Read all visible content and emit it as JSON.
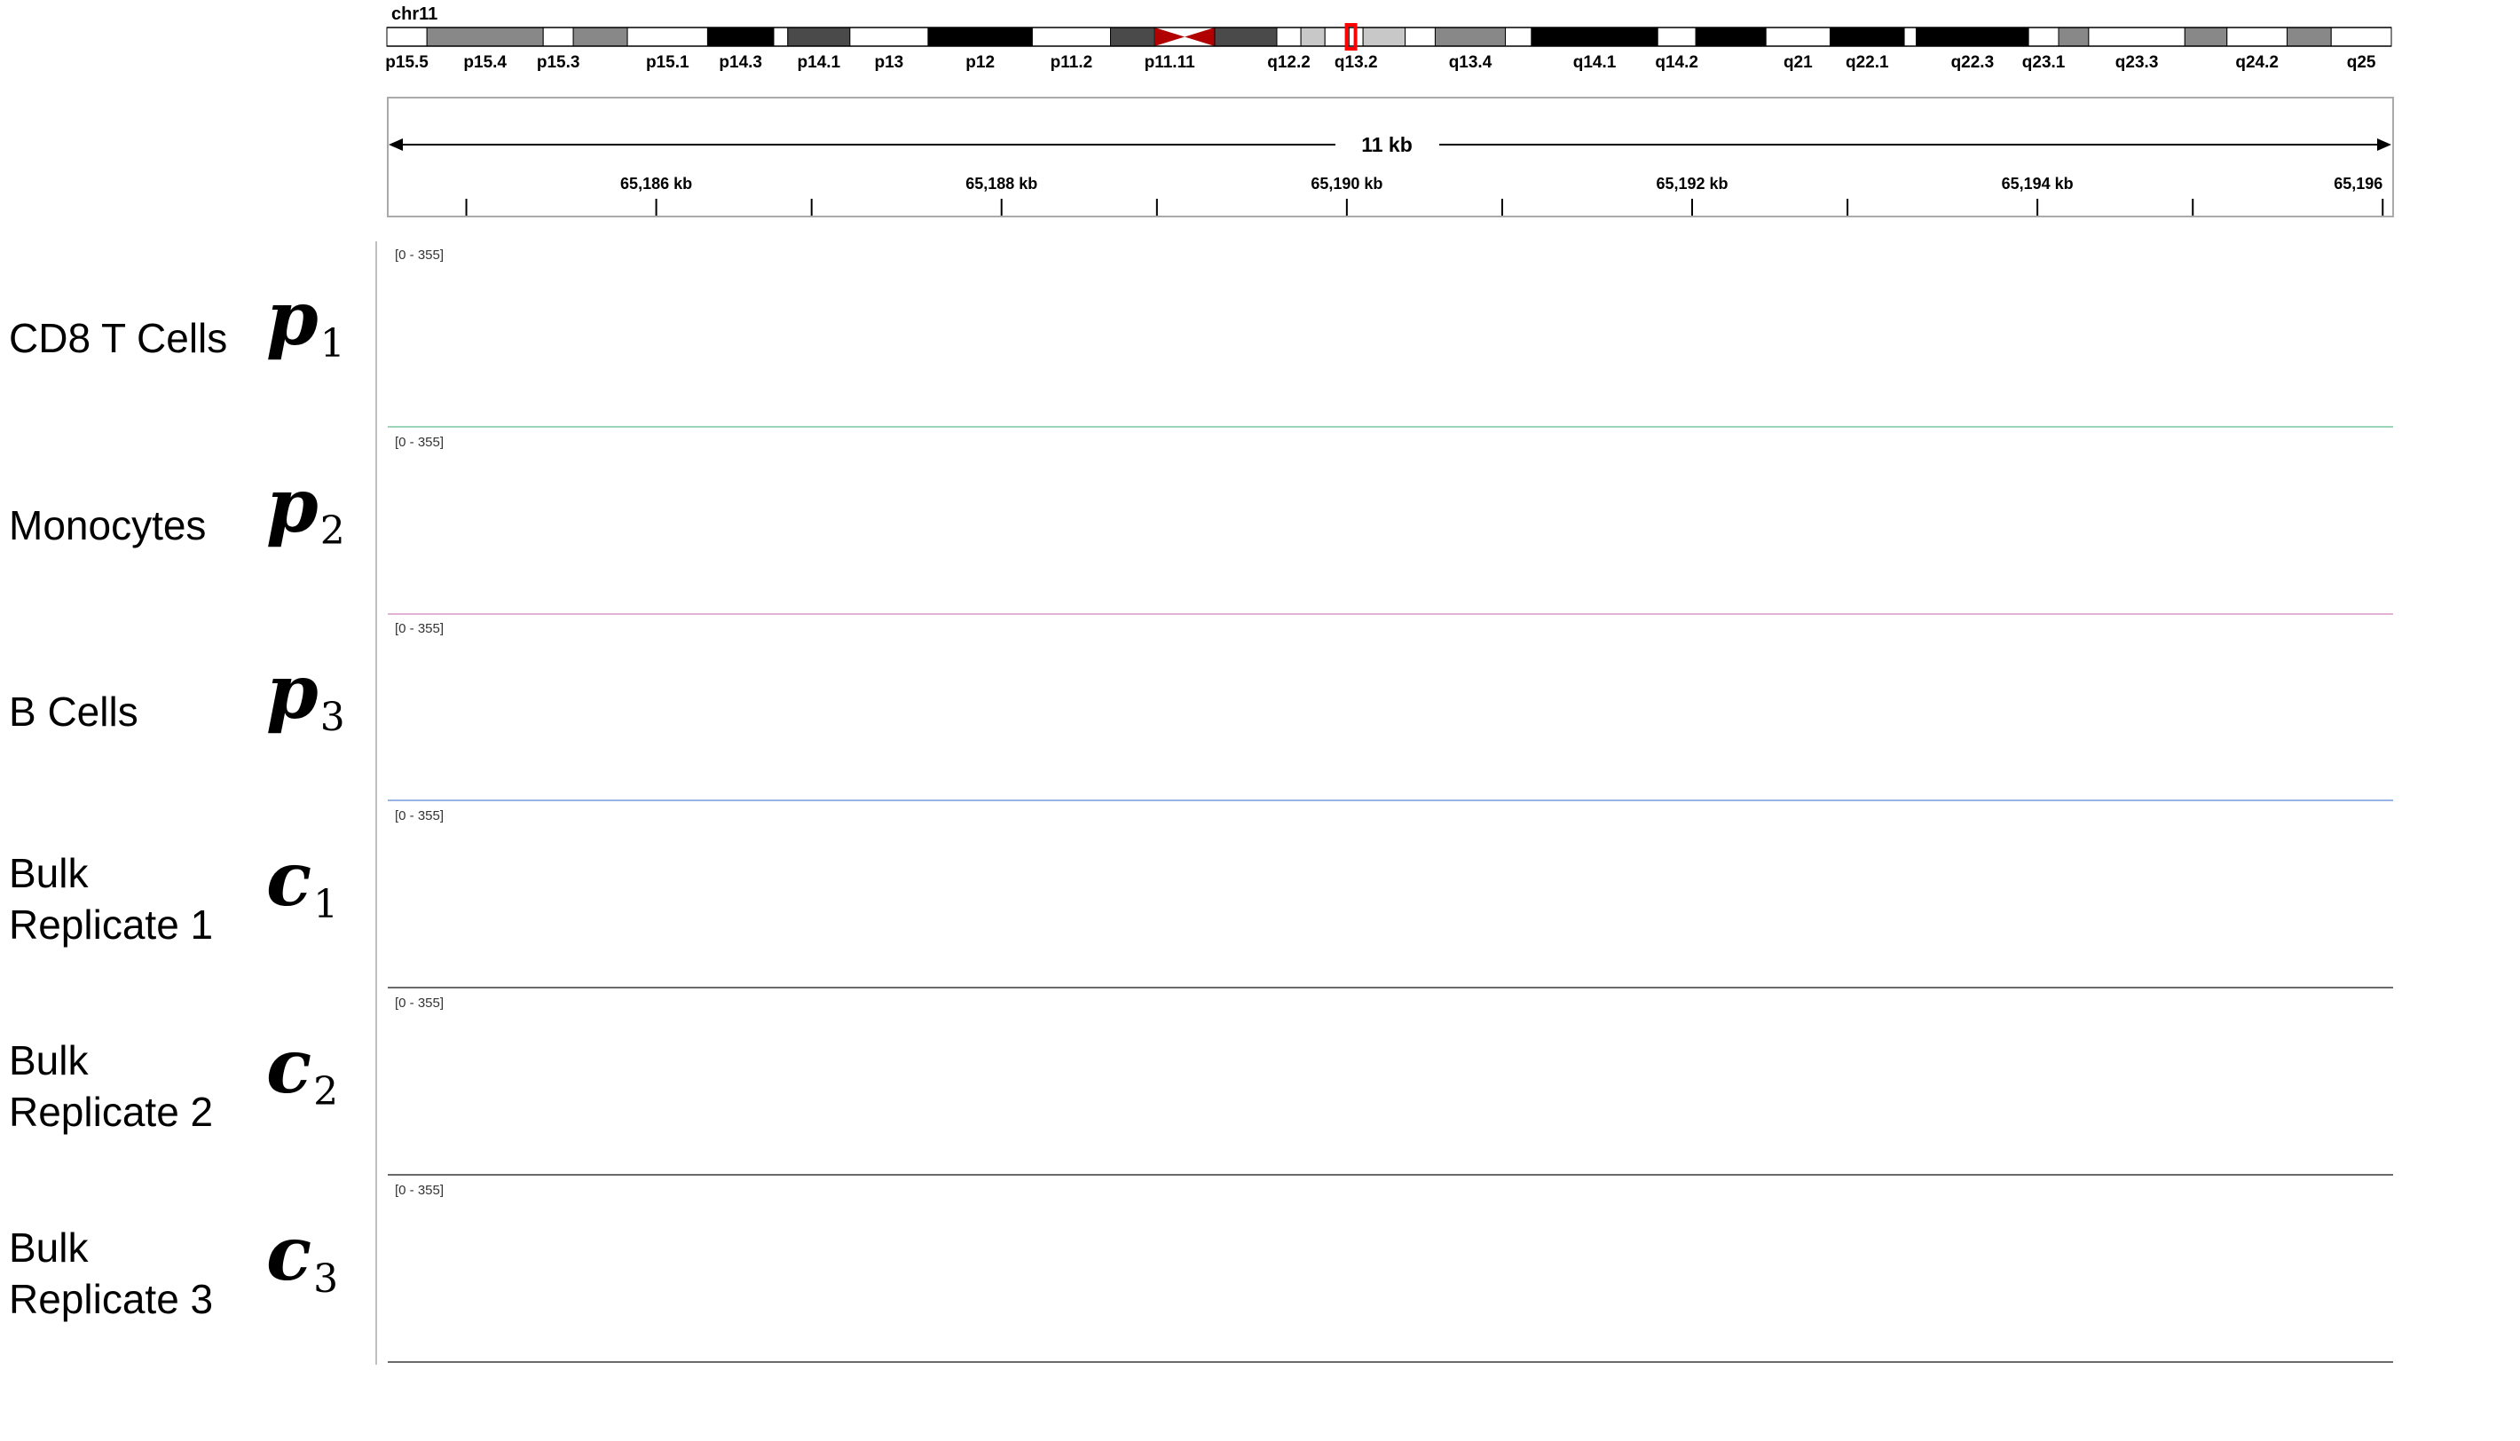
{
  "chromosome": {
    "name": "chr11",
    "bands": [
      {
        "label": "p15.5",
        "start": 0.0,
        "end": 0.02,
        "stain": "gneg"
      },
      {
        "label": "p15.4",
        "start": 0.02,
        "end": 0.078,
        "stain": "gpos50"
      },
      {
        "label": "p15.3",
        "start": 0.078,
        "end": 0.093,
        "stain": "gneg"
      },
      {
        "label": "",
        "start": 0.093,
        "end": 0.12,
        "stain": "gpos50"
      },
      {
        "label": "p15.1",
        "start": 0.12,
        "end": 0.16,
        "stain": "gneg"
      },
      {
        "label": "p14.3",
        "start": 0.16,
        "end": 0.193,
        "stain": "gpos100"
      },
      {
        "label": "",
        "start": 0.193,
        "end": 0.2,
        "stain": "gneg"
      },
      {
        "label": "p14.1",
        "start": 0.2,
        "end": 0.231,
        "stain": "gpos75"
      },
      {
        "label": "p13",
        "start": 0.231,
        "end": 0.27,
        "stain": "gneg"
      },
      {
        "label": "p12",
        "start": 0.27,
        "end": 0.322,
        "stain": "gpos100"
      },
      {
        "label": "p11.2",
        "start": 0.322,
        "end": 0.361,
        "stain": "gneg"
      },
      {
        "label": "",
        "start": 0.361,
        "end": 0.383,
        "stain": "gpos75"
      },
      {
        "label": "p11.11",
        "start": 0.383,
        "end": 0.398,
        "stain": "acen"
      },
      {
        "label": "",
        "start": 0.398,
        "end": 0.413,
        "stain": "acen"
      },
      {
        "label": "",
        "start": 0.413,
        "end": 0.444,
        "stain": "gpos75"
      },
      {
        "label": "q12.2",
        "start": 0.444,
        "end": 0.456,
        "stain": "gneg"
      },
      {
        "label": "",
        "start": 0.456,
        "end": 0.468,
        "stain": "gpos25"
      },
      {
        "label": "",
        "start": 0.468,
        "end": 0.48,
        "stain": "gneg"
      },
      {
        "label": "q13.2",
        "start": 0.48,
        "end": 0.487,
        "stain": "gneg"
      },
      {
        "label": "",
        "start": 0.487,
        "end": 0.508,
        "stain": "gpos25"
      },
      {
        "label": "",
        "start": 0.508,
        "end": 0.523,
        "stain": "gneg"
      },
      {
        "label": "q13.4",
        "start": 0.523,
        "end": 0.558,
        "stain": "gpos50"
      },
      {
        "label": "",
        "start": 0.558,
        "end": 0.571,
        "stain": "gneg"
      },
      {
        "label": "q14.1",
        "start": 0.571,
        "end": 0.634,
        "stain": "gpos100"
      },
      {
        "label": "q14.2",
        "start": 0.634,
        "end": 0.653,
        "stain": "gneg"
      },
      {
        "label": "",
        "start": 0.653,
        "end": 0.688,
        "stain": "gpos100"
      },
      {
        "label": "q21",
        "start": 0.688,
        "end": 0.72,
        "stain": "gneg"
      },
      {
        "label": "q22.1",
        "start": 0.72,
        "end": 0.757,
        "stain": "gpos100"
      },
      {
        "label": "",
        "start": 0.757,
        "end": 0.763,
        "stain": "gneg"
      },
      {
        "label": "q22.3",
        "start": 0.763,
        "end": 0.819,
        "stain": "gpos100"
      },
      {
        "label": "q23.1",
        "start": 0.819,
        "end": 0.834,
        "stain": "gneg"
      },
      {
        "label": "",
        "start": 0.834,
        "end": 0.849,
        "stain": "gpos50"
      },
      {
        "label": "q23.3",
        "start": 0.849,
        "end": 0.897,
        "stain": "gneg"
      },
      {
        "label": "",
        "start": 0.897,
        "end": 0.918,
        "stain": "gpos50"
      },
      {
        "label": "q24.2",
        "start": 0.918,
        "end": 0.948,
        "stain": "gneg"
      },
      {
        "label": "",
        "start": 0.948,
        "end": 0.97,
        "stain": "gpos50"
      },
      {
        "label": "q25",
        "start": 0.97,
        "end": 1.0,
        "stain": "gneg"
      }
    ],
    "band_labels": [
      "p15.4",
      "p15.3",
      "p15.1",
      "p14.3",
      "p14.1",
      "p13",
      "p12",
      "p11.2",
      "p11.11",
      "q12.2",
      "q13.2",
      "q13.4",
      "q14.1",
      "q14.2",
      "q21",
      "q22.1",
      "q22.3",
      "q23.1",
      "q23.3",
      "q24.2",
      "q25"
    ],
    "highlight_fraction": 0.481,
    "highlight_color": "#ff0000",
    "centromere_color": "#b00000"
  },
  "ruler": {
    "span_label": "11 kb",
    "range_kb": [
      65184.45,
      65196.05
    ],
    "ticks_kb": [
      65186,
      65188,
      65190,
      65192,
      65194,
      65196
    ],
    "tick_labels": [
      "65,186 kb",
      "65,188 kb",
      "65,190 kb",
      "65,192 kb",
      "65,194 kb",
      "65,196"
    ],
    "minor_ticks_kb": [
      65184.9,
      65186.9,
      65188.9,
      65190.9,
      65192.9,
      65194.9
    ]
  },
  "tracks": [
    {
      "label": "CD8 T Cells",
      "label_lines": [
        "CD8 T Cells"
      ],
      "symbol": "p",
      "subscript": "1",
      "color": "#5fd6a0",
      "range_label": "[0 - 355]"
    },
    {
      "label": "Monocytes",
      "label_lines": [
        "Monocytes"
      ],
      "symbol": "p",
      "subscript": "2",
      "color": "#ee8fd3",
      "range_label": "[0 - 355]"
    },
    {
      "label": "B Cells",
      "label_lines": [
        "B Cells"
      ],
      "symbol": "p",
      "subscript": "3",
      "color": "#5b8ff5",
      "range_label": "[0 - 355]"
    },
    {
      "label": "Bulk Replicate 1",
      "label_lines": [
        "Bulk",
        "Replicate 1"
      ],
      "symbol": "c",
      "subscript": "1",
      "color": "#000000",
      "range_label": "[0 - 355]"
    },
    {
      "label": "Bulk Replicate 2",
      "label_lines": [
        "Bulk",
        "Replicate 2"
      ],
      "symbol": "c",
      "subscript": "2",
      "color": "#000000",
      "range_label": "[0 - 355]"
    },
    {
      "label": "Bulk Replicate 3",
      "label_lines": [
        "Bulk",
        "Replicate 3"
      ],
      "symbol": "c",
      "subscript": "3",
      "color": "#000000",
      "range_label": "[0 - 355]"
    }
  ],
  "chart_data": {
    "type": "area",
    "x": [
      65184.45,
      65184.9,
      65185.2,
      65185.4,
      65185.5,
      65185.6,
      65185.7,
      65185.8,
      65185.9,
      65186.0,
      65186.1,
      65186.2,
      65186.3,
      65186.4,
      65186.5,
      65186.6,
      65186.7,
      65186.8,
      65186.9,
      65187.0,
      65187.2,
      65187.4,
      65187.5,
      65187.6,
      65187.7,
      65187.8,
      65187.9,
      65188.0,
      65188.2,
      65188.4,
      65188.6,
      65188.8,
      65188.9,
      65189.0,
      65189.1,
      65189.2,
      65189.3,
      65189.4,
      65189.6,
      65189.7,
      65189.8,
      65189.9,
      65190.0,
      65190.1,
      65190.2,
      65190.3,
      65190.4,
      65190.6,
      65190.8,
      65191.0,
      65191.2,
      65191.4,
      65191.6,
      65191.8,
      65192.0,
      65192.2,
      65192.4,
      65192.6,
      65192.8,
      65192.9,
      65193.0,
      65193.1,
      65193.2,
      65193.3,
      65193.5,
      65193.7,
      65193.8,
      65193.9,
      65194.0,
      65194.1,
      65194.3,
      65194.5,
      65194.7,
      65194.9,
      65195.1,
      65195.3,
      65195.5,
      65195.7,
      65195.9,
      65196.05
    ],
    "series": [
      {
        "name": "CD8 T Cells",
        "values": [
          0,
          0,
          0,
          0,
          0,
          0,
          0,
          0,
          0,
          0,
          0,
          0,
          0,
          0,
          0,
          0,
          0,
          0,
          0,
          0,
          0,
          0,
          0,
          0,
          0,
          0,
          0,
          0,
          0,
          0,
          0,
          0,
          0,
          0,
          0,
          0,
          0,
          0,
          0,
          0,
          0,
          0,
          0,
          0,
          0,
          0,
          0,
          0,
          0,
          0,
          0,
          0,
          0,
          0,
          0,
          0,
          0,
          0,
          0,
          0,
          0,
          0,
          0,
          0,
          0,
          0,
          0,
          0,
          0,
          0,
          0,
          0,
          0,
          0,
          0,
          0,
          0,
          0,
          0,
          0
        ]
      },
      {
        "name": "Monocytes",
        "values": [
          0,
          0,
          0,
          0,
          0,
          0,
          0,
          0,
          0,
          0,
          0,
          0,
          0,
          0,
          0,
          0,
          0,
          0,
          0,
          0,
          0,
          0,
          0,
          0,
          0,
          0,
          0,
          0,
          0,
          0,
          0,
          0,
          0,
          0,
          0,
          0,
          0,
          0,
          0,
          0,
          0,
          0,
          0,
          0,
          0,
          0,
          0,
          0,
          0,
          0,
          0,
          0,
          0,
          0,
          0,
          0,
          0,
          0,
          0,
          0,
          0,
          0,
          0,
          0,
          0,
          0,
          0,
          0,
          0,
          0,
          0,
          0,
          0,
          0,
          0,
          0,
          0,
          0,
          0,
          0
        ]
      },
      {
        "name": "B Cells",
        "values": [
          0,
          0,
          0,
          0,
          0,
          0,
          0,
          0,
          0,
          0,
          0,
          0,
          0,
          0,
          0,
          0,
          0,
          0,
          0,
          0,
          0,
          0,
          0,
          0,
          0,
          0,
          0,
          0,
          0,
          0,
          0,
          0,
          0,
          0,
          0,
          0,
          0,
          0,
          0,
          0,
          0,
          0,
          0,
          0,
          0,
          0,
          0,
          0,
          0,
          0,
          0,
          0,
          0,
          0,
          0,
          0,
          0,
          0,
          0,
          0,
          0,
          0,
          0,
          0,
          0,
          0,
          0,
          0,
          0,
          0,
          0,
          0,
          0,
          0,
          0,
          0,
          0,
          0,
          0,
          0
        ]
      },
      {
        "name": "Bulk Replicate 1",
        "values": [
          0,
          0,
          0,
          0,
          0,
          0,
          0,
          0,
          0,
          0,
          0,
          0,
          0,
          0,
          0,
          0,
          0,
          0,
          0,
          0,
          0,
          0,
          0,
          0,
          0,
          0,
          0,
          0,
          0,
          0,
          0,
          0,
          0,
          0,
          0,
          0,
          0,
          0,
          0,
          0,
          0,
          0,
          0,
          0,
          0,
          0,
          0,
          0,
          0,
          0,
          0,
          0,
          0,
          0,
          0,
          0,
          0,
          0,
          0,
          0,
          0,
          0,
          0,
          0,
          0,
          0,
          0,
          0,
          0,
          0,
          0,
          0,
          0,
          0,
          0,
          0,
          0,
          0,
          0,
          0
        ]
      },
      {
        "name": "Bulk Replicate 2",
        "values": [
          0,
          0,
          0,
          0,
          0,
          0,
          0,
          0,
          0,
          0,
          0,
          0,
          0,
          0,
          0,
          0,
          0,
          0,
          0,
          0,
          0,
          0,
          0,
          0,
          0,
          0,
          0,
          0,
          0,
          0,
          0,
          0,
          0,
          0,
          0,
          0,
          0,
          0,
          0,
          0,
          0,
          0,
          0,
          0,
          0,
          0,
          0,
          0,
          0,
          0,
          0,
          0,
          0,
          0,
          0,
          0,
          0,
          0,
          0,
          0,
          0,
          0,
          0,
          0,
          0,
          0,
          0,
          0,
          0,
          0,
          0,
          0,
          0,
          0,
          0,
          0,
          0,
          0,
          0,
          0
        ]
      },
      {
        "name": "Bulk Replicate 3",
        "values": [
          0,
          0,
          0,
          0,
          0,
          0,
          0,
          0,
          0,
          0,
          0,
          0,
          0,
          0,
          0,
          0,
          0,
          0,
          0,
          0,
          0,
          0,
          0,
          0,
          0,
          0,
          0,
          0,
          0,
          0,
          0,
          0,
          0,
          0,
          0,
          0,
          0,
          0,
          0,
          0,
          0,
          0,
          0,
          0,
          0,
          0,
          0,
          0,
          0,
          0,
          0,
          0,
          0,
          0,
          0,
          0,
          0,
          0,
          0,
          0,
          0,
          0,
          0,
          0,
          0,
          0,
          0,
          0,
          0,
          0,
          0,
          0,
          0,
          0,
          0,
          0,
          0,
          0,
          0,
          0
        ]
      }
    ],
    "ylim": [
      0,
      355
    ],
    "xlabel": "",
    "ylabel": "",
    "title": "",
    "grid": false,
    "legend": "none"
  }
}
